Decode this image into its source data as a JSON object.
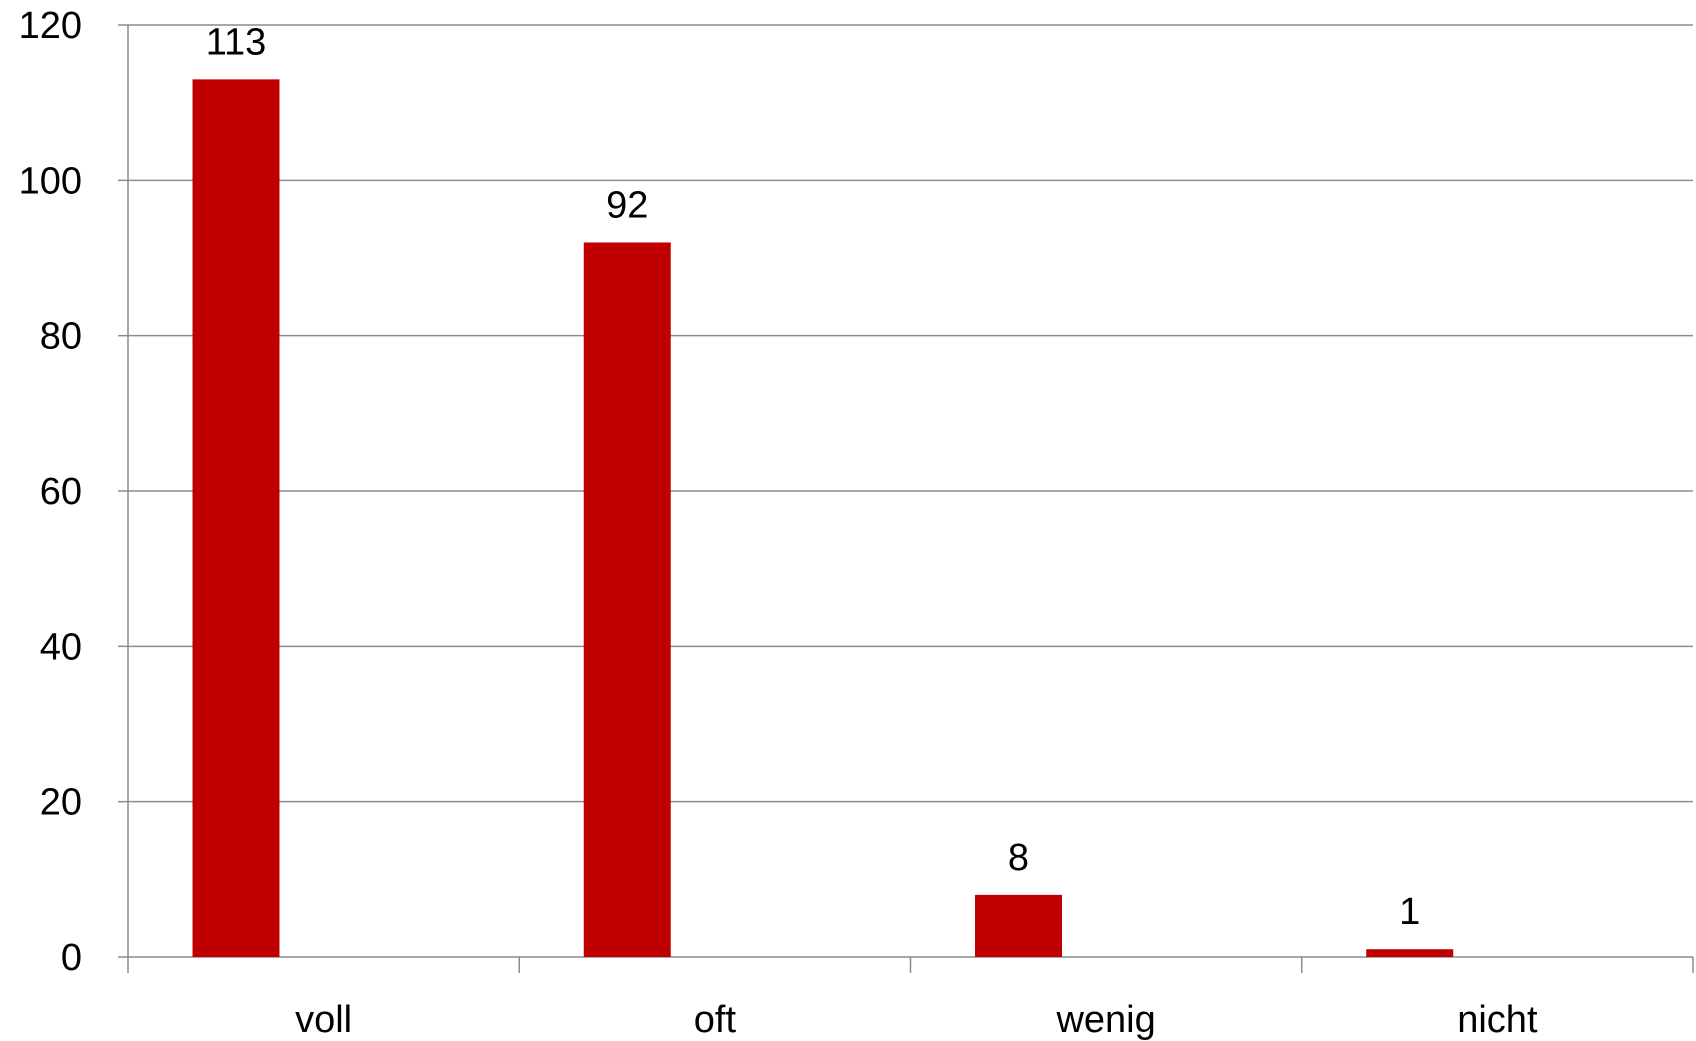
{
  "chart_data": {
    "type": "bar",
    "categories": [
      "voll",
      "oft",
      "wenig",
      "nicht"
    ],
    "values": [
      113,
      92,
      8,
      1
    ],
    "data_labels": [
      "113",
      "92",
      "8",
      "1"
    ],
    "y_ticks": [
      0,
      20,
      40,
      60,
      80,
      100,
      120
    ],
    "ylim": [
      0,
      120
    ],
    "grid": true,
    "legend": "none",
    "bar_color": "#c00000"
  }
}
